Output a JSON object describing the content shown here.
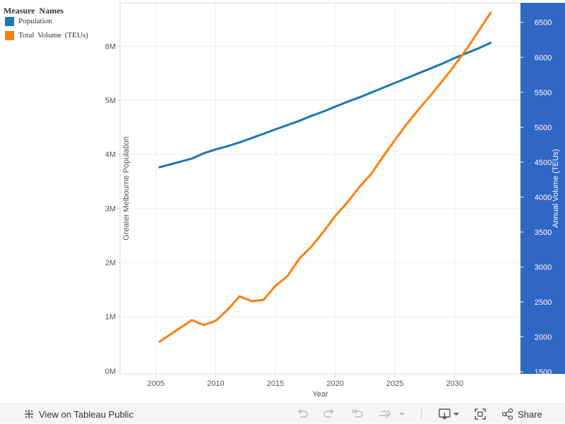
{
  "legend": {
    "title": "Measure  Names",
    "items": [
      {
        "label": "Population",
        "color": "#1f77b4"
      },
      {
        "label": "Total  Volume  (TEUs)",
        "color": "#ff7f0e"
      }
    ]
  },
  "toolbar": {
    "view_label": "View on Tableau Public",
    "share_label": "Share",
    "icons": [
      "tableau-logo-icon",
      "undo-icon",
      "redo-icon",
      "revert-icon",
      "refresh-icon",
      "dropdown-icon",
      "download-icon",
      "fullscreen-icon",
      "share-icon"
    ]
  },
  "chart_data": {
    "type": "line",
    "xlabel": "Year",
    "ylabel": "Greater Melbourne Population",
    "y2label": "Annual Volume (TEUs)",
    "xlim": [
      2002,
      2035.5
    ],
    "ylim": [
      -60000,
      6800000
    ],
    "y2lim": [
      1470,
      6780
    ],
    "xticks": [
      2005,
      2010,
      2015,
      2020,
      2025,
      2030
    ],
    "yticks": [
      0,
      1000000,
      2000000,
      3000000,
      4000000,
      5000000,
      6000000
    ],
    "ytick_labels": [
      "0M",
      "1M",
      "2M",
      "3M",
      "4M",
      "5M",
      "6M"
    ],
    "y2ticks": [
      1500,
      2000,
      2500,
      3000,
      3500,
      4000,
      4500,
      5000,
      5500,
      6000,
      6500
    ],
    "y2_axis_color": "#3066c4",
    "series": [
      {
        "name": "Population",
        "color": "#1f77b4",
        "axis": "left",
        "x": [
          2005.3,
          2008,
          2009,
          2010,
          2011,
          2012,
          2013,
          2014,
          2015,
          2016,
          2017,
          2018,
          2019,
          2020,
          2021,
          2022,
          2023,
          2024,
          2025,
          2026,
          2027,
          2028,
          2029,
          2030,
          2031,
          2032,
          2033
        ],
        "values": [
          3760000,
          3920000,
          4020000,
          4090000,
          4150000,
          4220000,
          4300000,
          4380000,
          4460000,
          4540000,
          4620000,
          4710000,
          4790000,
          4880000,
          4970000,
          5050000,
          5140000,
          5230000,
          5320000,
          5410000,
          5500000,
          5590000,
          5680000,
          5780000,
          5870000,
          5960000,
          6060000
        ]
      },
      {
        "name": "Total  Volume  (TEUs)",
        "color": "#ff7f0e",
        "axis": "right",
        "x": [
          2005.3,
          2008,
          2009,
          2010,
          2011,
          2012,
          2013,
          2014,
          2015,
          2016,
          2017,
          2018,
          2019,
          2020,
          2021,
          2022,
          2023,
          2024,
          2025,
          2026,
          2027,
          2028,
          2029,
          2030,
          2031,
          2032,
          2033
        ],
        "values": [
          1930,
          2240,
          2170,
          2230,
          2390,
          2580,
          2510,
          2530,
          2730,
          2870,
          3120,
          3290,
          3500,
          3730,
          3920,
          4140,
          4330,
          4580,
          4820,
          5050,
          5260,
          5460,
          5670,
          5890,
          6120,
          6380,
          6640
        ]
      }
    ]
  }
}
